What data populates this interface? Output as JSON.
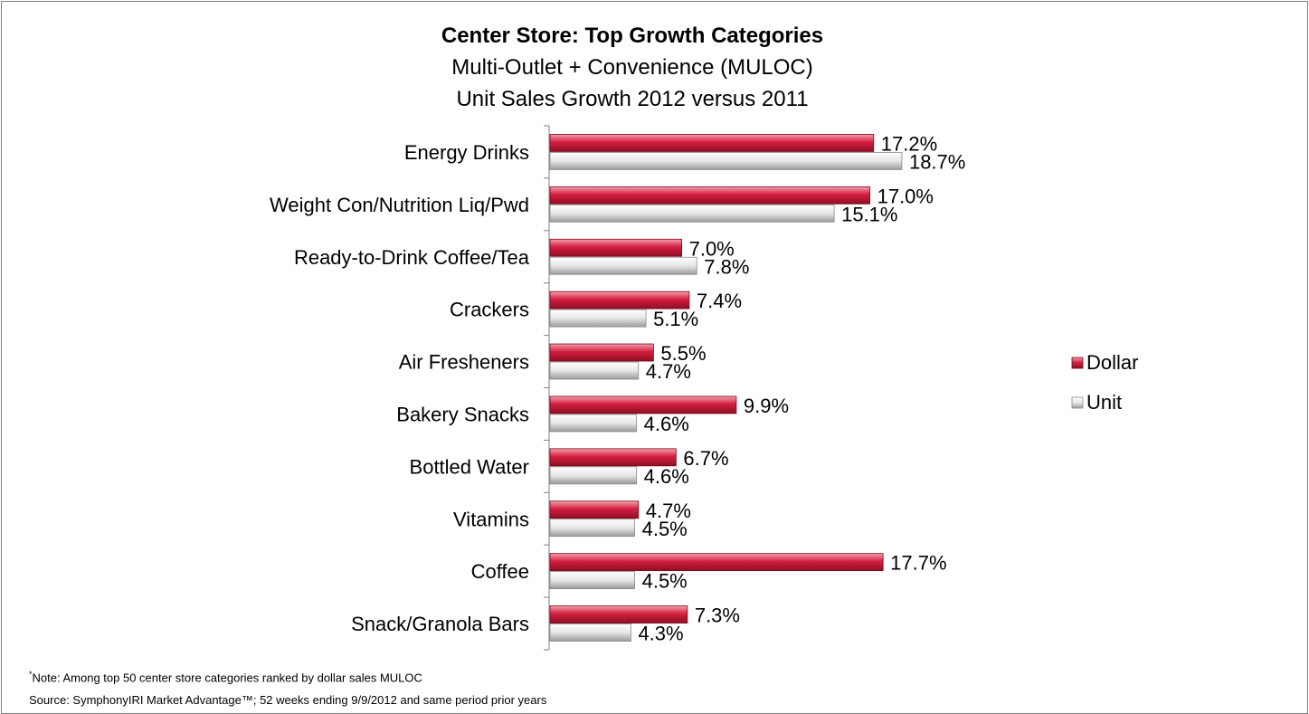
{
  "chart_data": {
    "type": "bar",
    "orientation": "horizontal",
    "title": "Center Store: Top Growth Categories",
    "subtitle_lines": [
      "Multi-Outlet + Convenience (MULOC)",
      "Unit Sales Growth 2012 versus 2011"
    ],
    "categories": [
      "Energy Drinks",
      "Weight Con/Nutrition Liq/Pwd",
      "Ready-to-Drink Coffee/Tea",
      "Crackers",
      "Air Fresheners",
      "Bakery Snacks",
      "Bottled Water",
      "Vitamins",
      "Coffee",
      "Snack/Granola Bars"
    ],
    "series": [
      {
        "name": "Dollar",
        "color": "#c8102e",
        "values": [
          17.2,
          17.0,
          7.0,
          7.4,
          5.5,
          9.9,
          6.7,
          4.7,
          17.7,
          7.3
        ],
        "labels": [
          "17.2%",
          "17.0%",
          "7.0%",
          "7.4%",
          "5.5%",
          "9.9%",
          "6.7%",
          "4.7%",
          "17.7%",
          "7.3%"
        ]
      },
      {
        "name": "Unit",
        "color": "#d9d9d9",
        "values": [
          18.7,
          15.1,
          7.8,
          5.1,
          4.7,
          4.6,
          4.6,
          4.5,
          4.5,
          4.3
        ],
        "labels": [
          "18.7%",
          "15.1%",
          "7.8%",
          "5.1%",
          "4.7%",
          "4.6%",
          "4.6%",
          "4.5%",
          "4.5%",
          "4.3%"
        ]
      }
    ],
    "xlim": [
      0,
      20
    ],
    "grid": false,
    "legend_position": "right"
  },
  "footnotes": {
    "note_marker": "*",
    "note": "Note:  Among top 50 center store categories ranked by dollar sales MULOC",
    "source": "Source:  SymphonyIRI Market Advantage™; 52 weeks ending 9/9/2012 and same period prior years"
  }
}
